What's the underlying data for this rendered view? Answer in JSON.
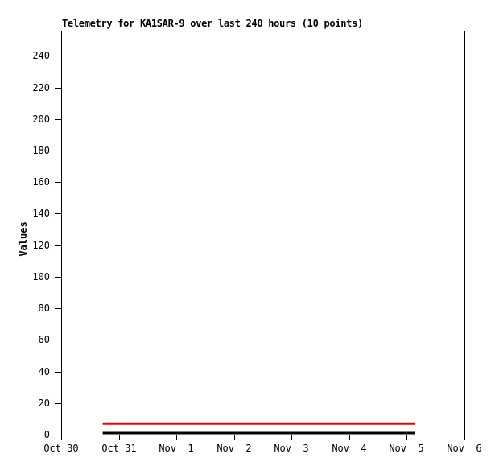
{
  "chart_data": {
    "type": "line",
    "title": "Telemetry for KA1SAR-9 over last 240 hours (10 points)",
    "ylabel": "Values",
    "xlabel": "",
    "ylim": [
      0,
      256
    ],
    "yticks": [
      0,
      20,
      40,
      60,
      80,
      100,
      120,
      140,
      160,
      180,
      200,
      220,
      240
    ],
    "xtick_labels": [
      "Oct 30",
      "Oct 31",
      "Nov  1",
      "Nov  2",
      "Nov  3",
      "Nov  4",
      "Nov  5",
      "Nov  6"
    ],
    "grid": false,
    "legend": false,
    "background_color": "#ffffff",
    "axis_color": "#000000",
    "series": [
      {
        "id": "red",
        "color": "#ee0000",
        "linewidth": 3,
        "num_points": 10,
        "values": [
          7,
          7,
          7,
          7,
          7,
          7,
          7,
          7,
          7,
          7
        ],
        "x_start_frac": 0.103,
        "x_end_frac": 0.878
      },
      {
        "id": "black",
        "color": "#000000",
        "linewidth": 3,
        "num_points": 10,
        "values": [
          1,
          1,
          1,
          1,
          1,
          1,
          1,
          1,
          1,
          1
        ],
        "x_start_frac": 0.103,
        "x_end_frac": 0.877
      }
    ]
  }
}
